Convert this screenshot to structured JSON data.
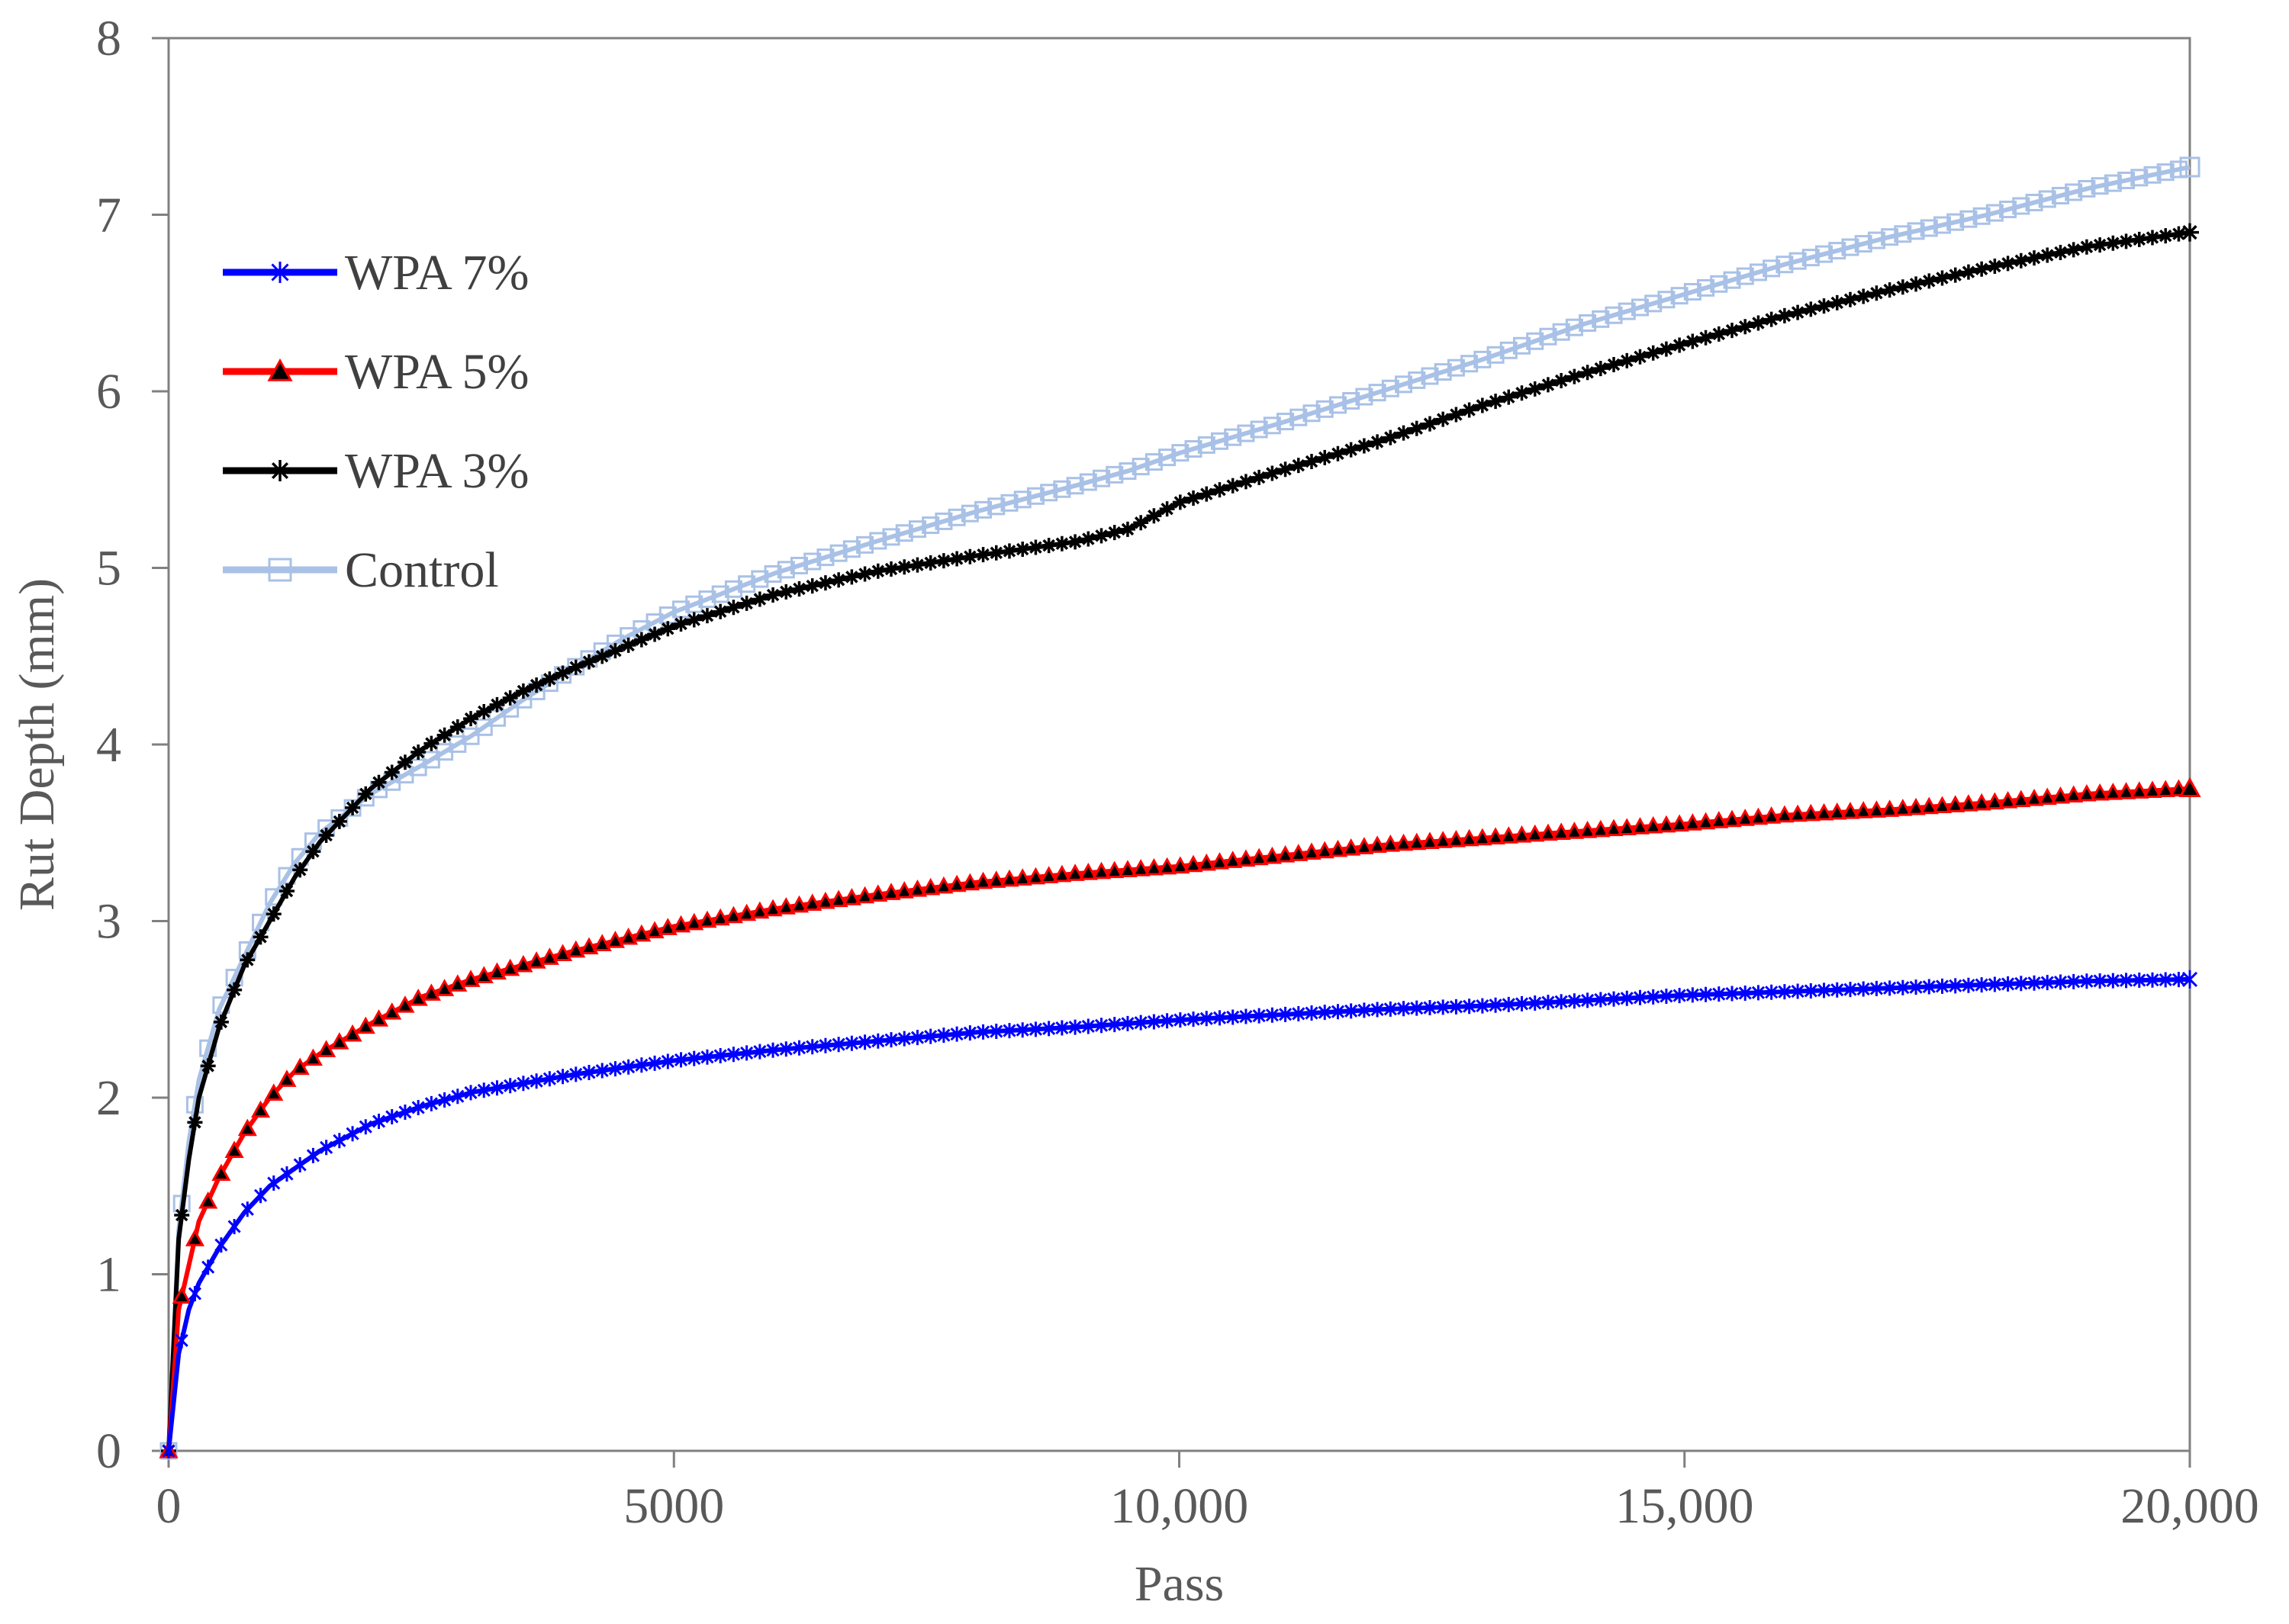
{
  "chart_data": {
    "type": "line",
    "title": "",
    "xlabel": "Pass",
    "ylabel": "Rut Depth (mm)",
    "xlim": [
      0,
      20000
    ],
    "ylim": [
      0,
      8
    ],
    "x_ticks": [
      0,
      5000,
      10000,
      15000,
      20000
    ],
    "x_tick_labels": [
      "0",
      "5000",
      "10,000",
      "15,000",
      "20,000"
    ],
    "y_ticks": [
      0,
      1,
      2,
      3,
      4,
      5,
      6,
      7,
      8
    ],
    "y_tick_labels": [
      "0",
      "1",
      "2",
      "3",
      "4",
      "5",
      "6",
      "7",
      "8"
    ],
    "grid": false,
    "legend_position": "upper-left",
    "x": [
      0,
      100,
      200,
      300,
      500,
      750,
      1000,
      1250,
      1500,
      2000,
      2500,
      3000,
      3500,
      4000,
      4500,
      5000,
      6000,
      7000,
      8000,
      9000,
      9500,
      10000,
      11000,
      12000,
      13000,
      14000,
      15000,
      16000,
      17000,
      18000,
      19000,
      20000
    ],
    "series": [
      {
        "name": "WPA 7%",
        "color": "#0000ff",
        "marker": "asterisk",
        "values": [
          0,
          0.55,
          0.8,
          0.95,
          1.15,
          1.35,
          1.5,
          1.6,
          1.7,
          1.85,
          1.95,
          2.03,
          2.08,
          2.13,
          2.17,
          2.21,
          2.27,
          2.32,
          2.37,
          2.4,
          2.42,
          2.44,
          2.47,
          2.5,
          2.52,
          2.55,
          2.58,
          2.6,
          2.62,
          2.64,
          2.66,
          2.67
        ]
      },
      {
        "name": "WPA 5%",
        "color": "#ff0000",
        "marker": "triangle",
        "values": [
          0,
          0.8,
          1.05,
          1.3,
          1.55,
          1.8,
          2.0,
          2.15,
          2.25,
          2.42,
          2.57,
          2.67,
          2.75,
          2.83,
          2.9,
          2.97,
          3.07,
          3.15,
          3.22,
          3.27,
          3.29,
          3.31,
          3.37,
          3.43,
          3.47,
          3.51,
          3.55,
          3.6,
          3.63,
          3.67,
          3.72,
          3.75
        ]
      },
      {
        "name": "WPA 3%",
        "color": "#000000",
        "marker": "star",
        "values": [
          0,
          1.2,
          1.65,
          2.0,
          2.4,
          2.75,
          3.0,
          3.25,
          3.45,
          3.75,
          3.97,
          4.15,
          4.3,
          4.43,
          4.55,
          4.67,
          4.85,
          4.98,
          5.07,
          5.15,
          5.22,
          5.37,
          5.55,
          5.72,
          5.92,
          6.1,
          6.27,
          6.43,
          6.57,
          6.7,
          6.82,
          6.9
        ]
      },
      {
        "name": "Control",
        "color": "#a9c1e6",
        "marker": "square",
        "values": [
          0,
          1.25,
          1.75,
          2.1,
          2.5,
          2.8,
          3.1,
          3.33,
          3.5,
          3.72,
          3.88,
          4.05,
          4.25,
          4.43,
          4.6,
          4.75,
          4.97,
          5.15,
          5.32,
          5.47,
          5.55,
          5.65,
          5.82,
          6.0,
          6.18,
          6.38,
          6.55,
          6.72,
          6.87,
          7.0,
          7.15,
          7.27
        ]
      }
    ]
  }
}
